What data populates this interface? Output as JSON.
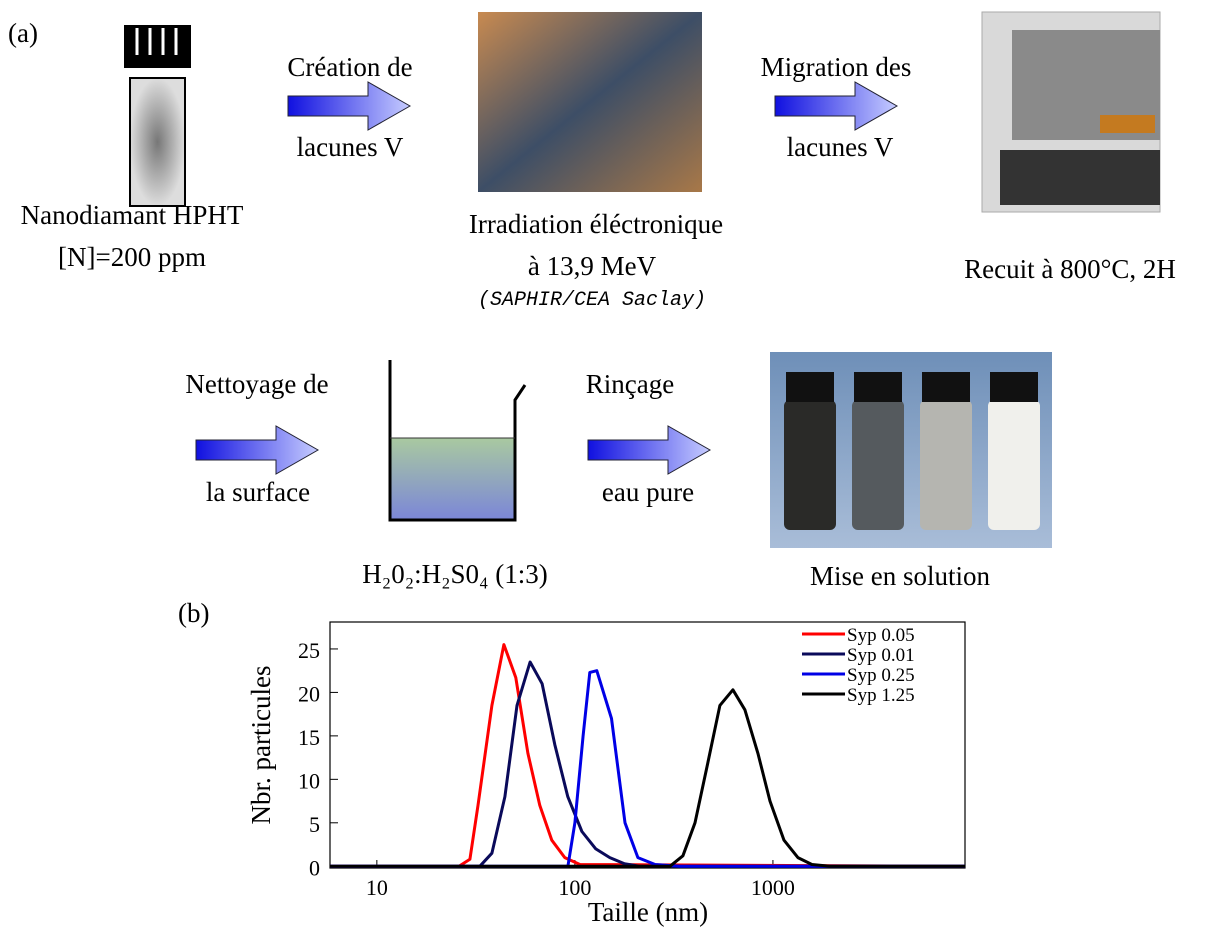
{
  "figure": {
    "panel_a": {
      "label": "(a)",
      "sample": {
        "line1": "Nanodiamant HPHT",
        "line2": "[N]=200 ppm"
      },
      "arrow1": {
        "top": "Création de",
        "bottom": "lacunes V"
      },
      "irradiation": {
        "line1": "Irradiation éléctronique",
        "line2": "à 13,9 MeV",
        "line3": "(SAPHIR/CEA Saclay)"
      },
      "arrow2": {
        "top": "Migration des",
        "bottom": "lacunes V"
      },
      "anneal": "Recuit à 800°C, 2H",
      "arrow3": {
        "top": "Nettoyage de",
        "bottom": "la surface"
      },
      "acid": "H₂0₂:H₂S0₄ (1:3)",
      "arrow4": {
        "top": "Rinçage",
        "bottom": "eau pure"
      },
      "solution": "Mise en solution"
    },
    "panel_b": {
      "label": "(b)"
    }
  },
  "chart_data": {
    "type": "line",
    "xlabel": "Taille (nm)",
    "ylabel": "Nbr. particules",
    "xscale": "log",
    "xlim": [
      5.8,
      9330
    ],
    "xticks": [
      10,
      100,
      1000
    ],
    "ylim": [
      -0.2,
      28.1
    ],
    "yticks": [
      0,
      5,
      10,
      15,
      20,
      25
    ],
    "legend": "upper right",
    "series": [
      {
        "name": "Syp 0.05",
        "color": "#ff0000",
        "x": [
          5.8,
          26,
          29.5,
          32.4,
          38.1,
          43.8,
          50.3,
          57.9,
          66.5,
          76.5,
          88.9,
          106,
          9330
        ],
        "values": [
          0,
          0,
          0.8,
          7,
          18.5,
          25.5,
          21.7,
          13,
          7,
          3,
          1,
          0.2,
          0
        ]
      },
      {
        "name": "Syp 0.01",
        "color": "#0a0a5a",
        "x": [
          5.8,
          33.1,
          38.1,
          44.3,
          51,
          59.4,
          68.3,
          79.2,
          92.1,
          108.5,
          127.5,
          150,
          178,
          212,
          9330
        ],
        "values": [
          0,
          0,
          1.5,
          8,
          18.5,
          23.5,
          21,
          14,
          8,
          4,
          2,
          1,
          0.3,
          0,
          0
        ]
      },
      {
        "name": "Syp 0.25",
        "color": "#0000e6",
        "x": [
          5.8,
          92.2,
          100,
          110,
          119,
          129,
          153,
          179,
          208,
          254,
          339,
          9330
        ],
        "values": [
          0,
          0,
          5,
          15,
          22.3,
          22.5,
          17,
          5,
          1,
          0.2,
          0,
          0
        ]
      },
      {
        "name": "Syp 1.25",
        "color": "#000000",
        "x": [
          5.8,
          302,
          351,
          404,
          470,
          540,
          628,
          722,
          840,
          966,
          1137,
          1337,
          1574,
          1940,
          9330
        ],
        "values": [
          0,
          0,
          1.2,
          5,
          12,
          18.5,
          20.3,
          18,
          13,
          7.5,
          3,
          1,
          0.2,
          0,
          0
        ]
      }
    ]
  }
}
